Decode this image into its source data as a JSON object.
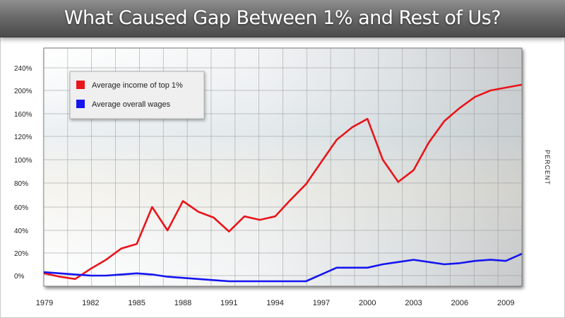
{
  "title": "What Caused Gap Between 1% and Rest of Us?",
  "chart_data": {
    "type": "line",
    "title": "What Caused Gap Between 1% and Rest of Us?",
    "xlabel": "",
    "ylabel": "PERCENT",
    "x": [
      1979,
      1980,
      1981,
      1982,
      1983,
      1984,
      1985,
      1986,
      1987,
      1988,
      1989,
      1990,
      1991,
      1992,
      1993,
      1994,
      1995,
      1996,
      1997,
      1998,
      1999,
      2000,
      2001,
      2002,
      2003,
      2004,
      2005,
      2006,
      2007,
      2008,
      2009,
      2010
    ],
    "x_tick_labels": [
      "1979",
      "1982",
      "1985",
      "1988",
      "1991",
      "1994",
      "1997",
      "2000",
      "2003",
      "2006",
      "2009"
    ],
    "y_tick_labels": [
      "0%",
      "20%",
      "40%",
      "60%",
      "80%",
      "100%",
      "120%",
      "160%",
      "200%",
      "240%"
    ],
    "series": [
      {
        "name": "Average income of top 1%",
        "color": "#e8151b",
        "values": [
          2,
          -1,
          -3,
          6,
          14,
          24,
          28,
          60,
          40,
          65,
          56,
          51,
          39,
          52,
          49,
          52,
          66,
          79,
          98,
          117,
          136,
          151,
          100,
          81,
          91,
          115,
          147,
          170,
          189,
          200,
          205,
          210
        ]
      },
      {
        "name": "Average overall wages",
        "color": "#1515f0",
        "values": [
          3,
          2,
          1,
          0,
          0,
          1,
          2,
          1,
          -1,
          -2,
          -3,
          -4,
          -5,
          -5,
          -5,
          -5,
          -5,
          -5,
          1,
          7,
          7,
          7,
          10,
          12,
          14,
          12,
          10,
          11,
          13,
          14,
          13,
          19
        ]
      }
    ],
    "legend": "top-left",
    "grid": true,
    "colors": {
      "title_bar": "#666666",
      "plot_frame": "#777777",
      "grid": "#9a9a9a"
    }
  }
}
